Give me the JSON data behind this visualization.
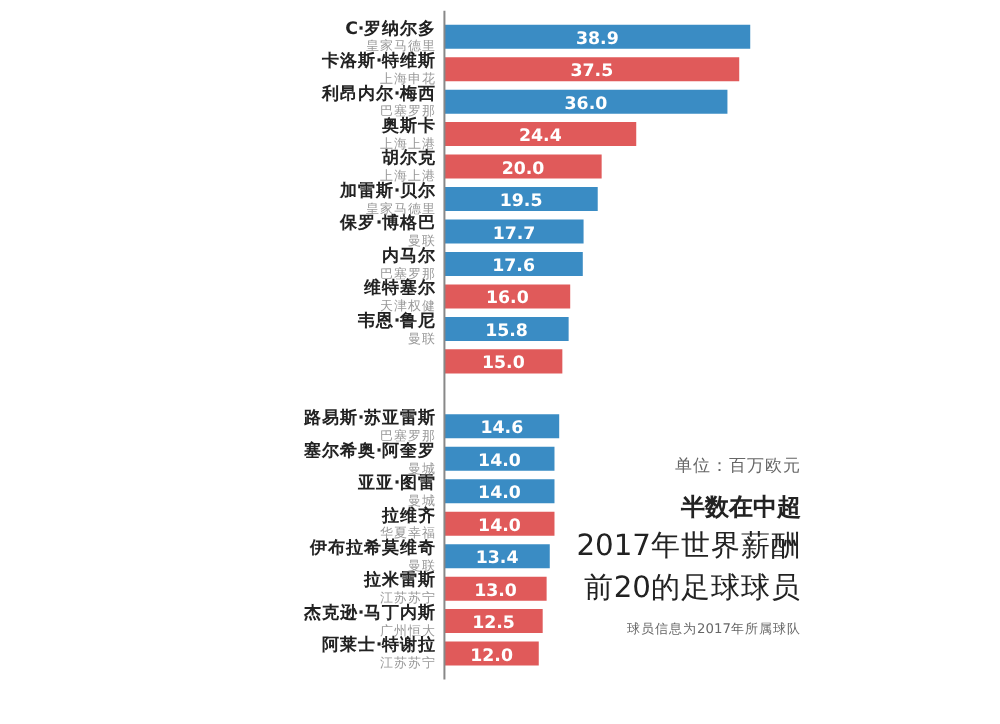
{
  "chart_data": {
    "type": "bar",
    "orientation": "horizontal",
    "title": "2017年世界薪酬前20的足球球员",
    "subtitle": "半数在中超",
    "annotations": [
      "单位：百万欧元",
      "球员信息为2017年所属球队",
      "皇家马德里",
      "上海申花",
      "巴塞罗那",
      "上海上港",
      "上海上港",
      "皇家马德里",
      "曼联",
      "巴塞罗那",
      "天津权健",
      "曼联",
      "巴塞罗那",
      "曼城",
      "曼城",
      "华夏幸福",
      "曼联",
      "江苏苏宁",
      "广州恒大",
      "江苏苏宁"
    ],
    "categories": [
      "C·罗纳尔多",
      "卡洛斯·特维斯",
      "利昂内尔·梅西",
      "奥斯卡",
      "胡尔克",
      "加雷斯·贝尔",
      "保罗·博格巴",
      "内马尔",
      "维特塞尔",
      "韦恩·鲁尼",
      null,
      null,
      "路易斯·苏亚雷斯",
      "塞尔希奥·阿奎罗",
      "亚亚·图雷",
      "拉维齐",
      "伊布拉希莫维奇",
      "拉米雷斯",
      "杰克逊·马丁内斯",
      "阿莱士·特谢拉"
    ],
    "values": [
      38.9,
      37.5,
      36.0,
      24.4,
      20.0,
      19.5,
      17.7,
      17.6,
      16.0,
      15.8,
      15.0,
      null,
      14.6,
      14.0,
      14.0,
      14.0,
      13.4,
      13.0,
      12.5,
      12.0
    ],
    "value_labels": [
      "38.9",
      "37.5",
      "36.0",
      "24.4",
      "20.0",
      "19.5",
      "17.7",
      "17.6",
      "16.0",
      "15.8",
      "15.0",
      null,
      "14.6",
      "14.0",
      "14.0",
      "14.0",
      "13.4",
      "13.0",
      "12.5",
      "12.0"
    ],
    "colors": [
      "#3a8cc4",
      "#e05a5a",
      "#3a8cc4",
      "#e05a5a",
      "#e05a5a",
      "#3a8cc4",
      "#3a8cc4",
      "#3a8cc4",
      "#e05a5a",
      "#3a8cc4",
      "#e05a5a",
      "#3a8cc4",
      "#3a8cc4",
      "#3a8cc4",
      "#3a8cc4",
      "#e05a5a",
      "#3a8cc4",
      "#e05a5a",
      "#e05a5a",
      "#e05a5a"
    ]
  }
}
